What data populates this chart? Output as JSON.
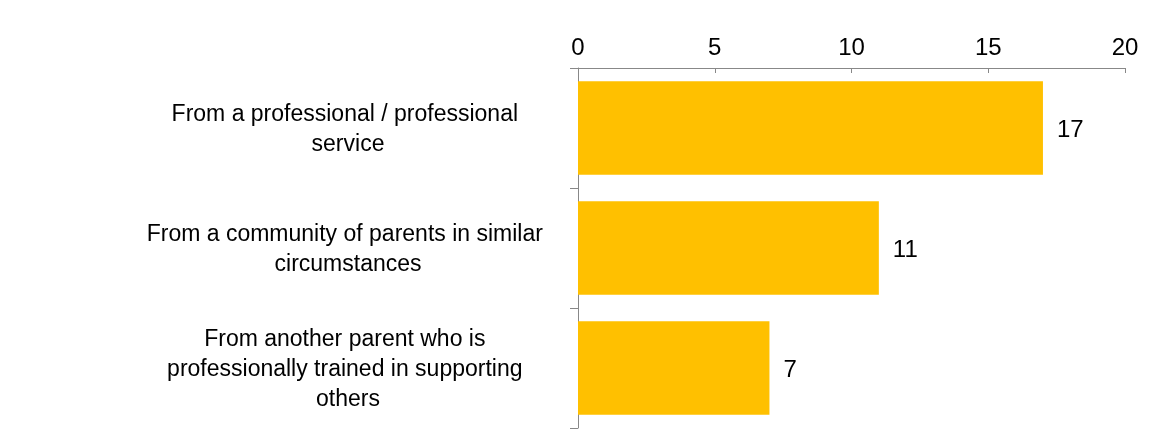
{
  "chart_data": {
    "type": "bar",
    "orientation": "horizontal",
    "categories": [
      "From a professional / professional service",
      "From a community of parents in similar circumstances",
      "From another parent who is professionally trained in supporting others"
    ],
    "values": [
      17,
      11,
      7
    ],
    "color": "#ffc000",
    "xlim": [
      0,
      20
    ],
    "xticks": [
      0,
      5,
      10,
      15,
      20
    ],
    "grid": false,
    "data_labels": true
  }
}
